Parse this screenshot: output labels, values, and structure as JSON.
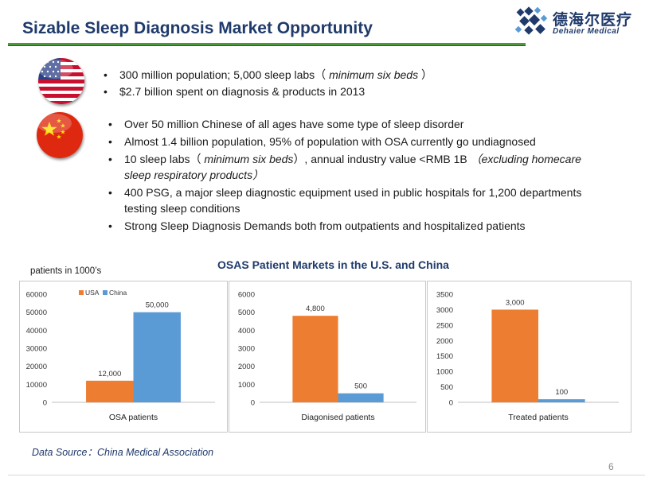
{
  "title": "Sizable Sleep Diagnosis Market Opportunity",
  "logo": {
    "cn": "德海尔医疗",
    "en": "Dehaier Medical"
  },
  "usa": {
    "flag_icon": "usa-flag-icon",
    "bullets": [
      {
        "text": "300 million population;  5,000 sleep labs（ ",
        "em": "minimum six beds",
        "tail": " ）"
      },
      {
        "text": "$2.7 billion spent on diagnosis & products in 2013",
        "em": "",
        "tail": ""
      }
    ]
  },
  "china": {
    "flag_icon": "china-flag-icon",
    "bullets": [
      {
        "text": "Over 50 million Chinese of all ages have some type of sleep disorder",
        "em": "",
        "tail": ""
      },
      {
        "text": "Almost 1.4 billion population, 95% of population with OSA currently  go undiagnosed",
        "em": "",
        "tail": ""
      },
      {
        "text": "10 sleep labs（ ",
        "em": "minimum six beds",
        "tail": "）, annual industry value <RMB 1B  （excluding homecare sleep respiratory products）",
        "tail_em": true
      },
      {
        "text": "400 PSG, a major sleep diagnostic equipment used in public hospitals for 1,200 departments testing sleep conditions",
        "em": "",
        "tail": ""
      },
      {
        "text": "Strong Sleep Diagnosis Demands both from outpatients and hospitalized patients",
        "em": "",
        "tail": ""
      }
    ]
  },
  "charts_heading": "OSAS Patient Markets in the U.S. and China",
  "unit_label": "patients in 1000’s",
  "colors": {
    "usa": "#ed7d31",
    "china": "#5b9bd5",
    "title": "#1f3a6b",
    "rule": "#4a9a3a"
  },
  "chart_data": [
    {
      "type": "bar",
      "categories": [
        "OSA patients"
      ],
      "series": [
        {
          "name": "USA",
          "values": [
            12000
          ],
          "labels": [
            "12,000"
          ]
        },
        {
          "name": "China",
          "values": [
            50000
          ],
          "labels": [
            "50,000"
          ]
        }
      ],
      "yticks": [
        "0",
        "10000",
        "20000",
        "30000",
        "40000",
        "50000",
        "60000"
      ],
      "ylim": [
        0,
        60000
      ],
      "legend": "top-left",
      "grid": false
    },
    {
      "type": "bar",
      "categories": [
        "Diagonised patients"
      ],
      "series": [
        {
          "values": [
            4800
          ],
          "labels": [
            "4,800"
          ]
        },
        {
          "values": [
            500
          ],
          "labels": [
            "500"
          ]
        }
      ],
      "yticks": [
        "0",
        "1000",
        "2000",
        "3000",
        "4000",
        "5000",
        "6000"
      ],
      "ylim": [
        0,
        6000
      ],
      "grid": false
    },
    {
      "type": "bar",
      "categories": [
        "Treated patients"
      ],
      "series": [
        {
          "values": [
            3000
          ],
          "labels": [
            "3,000"
          ]
        },
        {
          "values": [
            100
          ],
          "labels": [
            "100"
          ]
        }
      ],
      "yticks": [
        "0",
        "500",
        "1000",
        "1500",
        "2000",
        "2500",
        "3000",
        "3500"
      ],
      "ylim": [
        0,
        3500
      ],
      "grid": false
    }
  ],
  "source": "Data Source：China Medical Association",
  "page_number": "6"
}
